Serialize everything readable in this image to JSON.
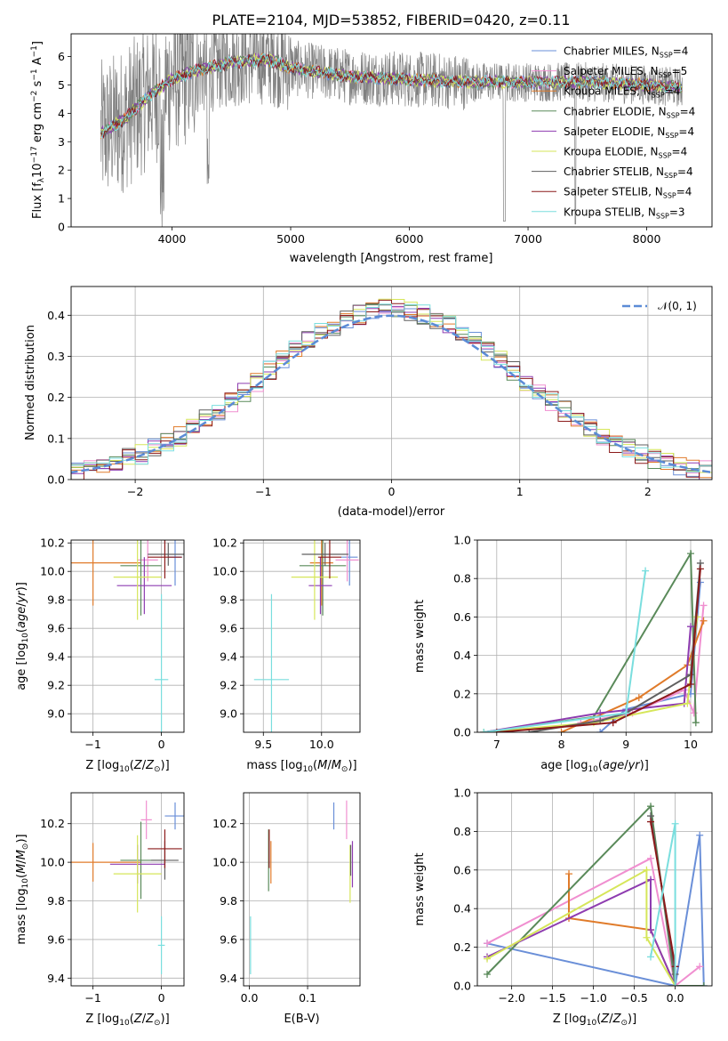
{
  "figure": {
    "title": "PLATE=2104, MJD=53852, FIBERID=0420, z=0.11"
  },
  "colors": {
    "Chabrier MILES": "#6a8fd8",
    "Salpeter MILES": "#f08fd0",
    "Kroupa MILES": "#e07b2a",
    "Chabrier ELODIE": "#5a8a5a",
    "Salpeter ELODIE": "#8e3cb0",
    "Kroupa ELODIE": "#d6e65a",
    "Chabrier STELIB": "#606060",
    "Salpeter STELIB": "#8b1a1a",
    "Kroupa STELIB": "#7adede",
    "normal": "#5b8bd6",
    "grid": "#b0b0b0"
  },
  "chart_data": [
    {
      "type": "line",
      "panel": "spectrum",
      "title": "PLATE=2104, MJD=53852, FIBERID=0420, z=0.11",
      "xlabel": "wavelength [Angstrom, rest frame]",
      "ylabel": "Flux [f_λ 10^-17 erg cm^-2 s^-1 A^-1]",
      "xlim": [
        3150,
        8550
      ],
      "ylim": [
        0,
        6.8
      ],
      "xticks": [
        "4000",
        "5000",
        "6000",
        "7000",
        "8000"
      ],
      "yticks": [
        "0",
        "1",
        "2",
        "3",
        "4",
        "5",
        "6"
      ],
      "grid": false,
      "legend_position": "right",
      "model_range": [
        3400,
        8300
      ],
      "continuum": [
        [
          3400,
          3.3
        ],
        [
          3600,
          3.8
        ],
        [
          3800,
          4.6
        ],
        [
          4000,
          5.2
        ],
        [
          4200,
          5.5
        ],
        [
          4500,
          5.8
        ],
        [
          4800,
          5.9
        ],
        [
          5000,
          5.6
        ],
        [
          5500,
          5.3
        ],
        [
          6000,
          5.2
        ],
        [
          6500,
          5.1
        ],
        [
          7000,
          5.1
        ],
        [
          7500,
          5.1
        ],
        [
          8000,
          5.0
        ],
        [
          8300,
          4.9
        ]
      ],
      "series": [
        {
          "name": "Chabrier MILES, N_SSP=4"
        },
        {
          "name": "Salpeter MILES, N_SSP=5"
        },
        {
          "name": "Kroupa MILES, N_SSP=4"
        },
        {
          "name": "Chabrier ELODIE, N_SSP=4"
        },
        {
          "name": "Salpeter ELODIE, N_SSP=4"
        },
        {
          "name": "Kroupa ELODIE, N_SSP=4"
        },
        {
          "name": "Chabrier STELIB, N_SSP=4"
        },
        {
          "name": "Salpeter STELIB, N_SSP=4"
        },
        {
          "name": "Kroupa STELIB, N_SSP=3"
        }
      ]
    },
    {
      "type": "line",
      "panel": "residuals",
      "xlabel": "(data-model)/error",
      "ylabel": "Normed distribution",
      "xlim": [
        -2.5,
        2.5
      ],
      "ylim": [
        0,
        0.47
      ],
      "xticks": [
        "−2",
        "−1",
        "0",
        "1",
        "2"
      ],
      "yticks": [
        "0.0",
        "0.1",
        "0.2",
        "0.3",
        "0.4"
      ],
      "grid": true,
      "legend": "𝒩(0, 1)",
      "legend_position": "top-right",
      "bin_width": 0.1
    },
    {
      "type": "scatter",
      "panel": "age-vs-Z",
      "xlabel": "Z [log10(Z/Z⊙)]",
      "ylabel": "age [log10(age/yr)]",
      "xlim": [
        -1.32,
        0.33
      ],
      "ylim": [
        8.87,
        10.22
      ],
      "xticks": [
        "−1",
        "0"
      ],
      "yticks": [
        "9.0",
        "9.2",
        "9.4",
        "9.6",
        "9.8",
        "10.0",
        "10.2"
      ],
      "grid": true,
      "points": [
        {
          "s": "Chabrier MILES",
          "x": 0.2,
          "y": 10.1,
          "xe": 0.1,
          "ye": 0.2
        },
        {
          "s": "Salpeter MILES",
          "x": -0.2,
          "y": 10.08,
          "xe": 0.15,
          "ye": 0.15
        },
        {
          "s": "Kroupa MILES",
          "x": -1.0,
          "y": 10.06,
          "xe": 0.7,
          "ye": 0.3
        },
        {
          "s": "Chabrier ELODIE",
          "x": -0.3,
          "y": 10.04,
          "xe": 0.3,
          "ye": 0.35
        },
        {
          "s": "Salpeter ELODIE",
          "x": -0.25,
          "y": 9.9,
          "xe": 0.4,
          "ye": 0.2
        },
        {
          "s": "Kroupa ELODIE",
          "x": -0.35,
          "y": 9.96,
          "xe": 0.35,
          "ye": 0.3
        },
        {
          "s": "Chabrier STELIB",
          "x": 0.1,
          "y": 10.12,
          "xe": 0.3,
          "ye": 0.08
        },
        {
          "s": "Salpeter STELIB",
          "x": 0.05,
          "y": 10.1,
          "xe": 0.25,
          "ye": 0.15
        },
        {
          "s": "Kroupa STELIB",
          "x": 0.0,
          "y": 9.24,
          "xe": 0.1,
          "ye": 0.6
        }
      ]
    },
    {
      "type": "scatter",
      "panel": "age-vs-mass",
      "xlabel": "mass [log10(M/M⊙)]",
      "ylabel": "",
      "xlim": [
        9.33,
        10.33
      ],
      "ylim": [
        8.87,
        10.22
      ],
      "xticks": [
        "9.5",
        "10.0"
      ],
      "yticks": [
        "9.0",
        "9.2",
        "9.4",
        "9.6",
        "9.8",
        "10.0",
        "10.2"
      ],
      "grid": true,
      "points": [
        {
          "s": "Chabrier MILES",
          "x": 10.24,
          "y": 10.1,
          "xe": 0.07,
          "ye": 0.2
        },
        {
          "s": "Salpeter MILES",
          "x": 10.22,
          "y": 10.08,
          "xe": 0.1,
          "ye": 0.15
        },
        {
          "s": "Kroupa MILES",
          "x": 10.0,
          "y": 10.06,
          "xe": 0.1,
          "ye": 0.3
        },
        {
          "s": "Chabrier ELODIE",
          "x": 10.01,
          "y": 10.04,
          "xe": 0.2,
          "ye": 0.35
        },
        {
          "s": "Salpeter ELODIE",
          "x": 9.99,
          "y": 9.9,
          "xe": 0.1,
          "ye": 0.2
        },
        {
          "s": "Kroupa ELODIE",
          "x": 9.94,
          "y": 9.96,
          "xe": 0.2,
          "ye": 0.3
        },
        {
          "s": "Chabrier STELIB",
          "x": 10.03,
          "y": 10.12,
          "xe": 0.2,
          "ye": 0.08
        },
        {
          "s": "Salpeter STELIB",
          "x": 10.07,
          "y": 10.1,
          "xe": 0.1,
          "ye": 0.15
        },
        {
          "s": "Kroupa STELIB",
          "x": 9.57,
          "y": 9.24,
          "xe": 0.15,
          "ye": 0.6
        }
      ]
    },
    {
      "type": "line",
      "panel": "mass-weight-vs-age",
      "xlabel": "age [log10(age/yr)]",
      "ylabel": "mass weight",
      "xlim": [
        6.7,
        10.33
      ],
      "ylim": [
        0,
        1.0
      ],
      "xticks": [
        "7",
        "8",
        "9",
        "10"
      ],
      "yticks": [
        "0.0",
        "0.2",
        "0.4",
        "0.6",
        "0.8",
        "1.0"
      ],
      "grid": true,
      "series": [
        {
          "s": "Chabrier MILES",
          "x": [
            8.6,
            9.0,
            10.0,
            10.15
          ],
          "y": [
            0.0,
            0.12,
            0.2,
            0.78
          ]
        },
        {
          "s": "Salpeter MILES",
          "x": [
            8.3,
            9.1,
            9.9,
            10.05,
            10.2
          ],
          "y": [
            0.05,
            0.1,
            0.22,
            0.1,
            0.66
          ]
        },
        {
          "s": "Kroupa MILES",
          "x": [
            8.0,
            9.2,
            9.95,
            10.2
          ],
          "y": [
            0.0,
            0.18,
            0.35,
            0.58
          ]
        },
        {
          "s": "Chabrier ELODIE",
          "x": [
            6.8,
            8.5,
            10.0,
            10.08
          ],
          "y": [
            0.0,
            0.08,
            0.93,
            0.05
          ]
        },
        {
          "s": "Salpeter ELODIE",
          "x": [
            6.8,
            8.6,
            9.9,
            10.0
          ],
          "y": [
            0.0,
            0.1,
            0.15,
            0.55
          ]
        },
        {
          "s": "Kroupa ELODIE",
          "x": [
            6.8,
            8.5,
            9.95,
            10.1
          ],
          "y": [
            0.0,
            0.05,
            0.15,
            0.6
          ]
        },
        {
          "s": "Chabrier STELIB",
          "x": [
            7.5,
            8.6,
            9.0,
            10.0,
            10.15
          ],
          "y": [
            0.0,
            0.06,
            0.1,
            0.3,
            0.88
          ]
        },
        {
          "s": "Salpeter STELIB",
          "x": [
            7.0,
            8.8,
            10.0,
            10.15
          ],
          "y": [
            0.0,
            0.05,
            0.25,
            0.85
          ]
        },
        {
          "s": "Kroupa STELIB",
          "x": [
            6.8,
            9.0,
            9.3
          ],
          "y": [
            0.0,
            0.1,
            0.84
          ]
        }
      ]
    },
    {
      "type": "scatter",
      "panel": "mass-vs-Z",
      "xlabel": "Z [log10(Z/Z⊙)]",
      "ylabel": "mass [log10(M/M⊙)]",
      "xlim": [
        -1.32,
        0.33
      ],
      "ylim": [
        9.36,
        10.36
      ],
      "xticks": [
        "−1",
        "0"
      ],
      "yticks": [
        "9.4",
        "9.6",
        "9.8",
        "10.0",
        "10.2"
      ],
      "grid": true,
      "points": [
        {
          "s": "Chabrier MILES",
          "x": 0.2,
          "y": 10.24,
          "xe": 0.15,
          "ye": 0.07
        },
        {
          "s": "Salpeter MILES",
          "x": -0.22,
          "y": 10.22,
          "xe": 0.08,
          "ye": 0.1
        },
        {
          "s": "Kroupa MILES",
          "x": -1.0,
          "y": 10.0,
          "xe": 0.7,
          "ye": 0.1
        },
        {
          "s": "Chabrier ELODIE",
          "x": -0.3,
          "y": 10.01,
          "xe": 0.3,
          "ye": 0.2
        },
        {
          "s": "Salpeter ELODIE",
          "x": -0.35,
          "y": 9.99,
          "xe": 0.4,
          "ye": 0.1
        },
        {
          "s": "Kroupa ELODIE",
          "x": -0.35,
          "y": 9.94,
          "xe": 0.35,
          "ye": 0.2
        },
        {
          "s": "Chabrier STELIB",
          "x": 0.05,
          "y": 10.01,
          "xe": 0.2,
          "ye": 0.1
        },
        {
          "s": "Salpeter STELIB",
          "x": 0.05,
          "y": 10.07,
          "xe": 0.25,
          "ye": 0.1
        },
        {
          "s": "Kroupa STELIB",
          "x": 0.0,
          "y": 9.57,
          "xe": 0.05,
          "ye": 0.15
        }
      ]
    },
    {
      "type": "scatter",
      "panel": "mass-vs-EBV",
      "xlabel": "E(B-V)",
      "ylabel": "",
      "xlim": [
        -0.01,
        0.19
      ],
      "ylim": [
        9.36,
        10.36
      ],
      "xticks": [
        "0.0",
        "0.1"
      ],
      "yticks": [
        "9.4",
        "9.6",
        "9.8",
        "10.0",
        "10.2"
      ],
      "grid": true,
      "points": [
        {
          "s": "Chabrier MILES",
          "x": 0.145,
          "y": 10.24,
          "xe": 0.0,
          "ye": 0.07
        },
        {
          "s": "Salpeter MILES",
          "x": 0.167,
          "y": 10.22,
          "xe": 0.0,
          "ye": 0.1
        },
        {
          "s": "Kroupa MILES",
          "x": 0.037,
          "y": 10.0,
          "xe": 0.0,
          "ye": 0.11
        },
        {
          "s": "Chabrier ELODIE",
          "x": 0.033,
          "y": 10.01,
          "xe": 0.0,
          "ye": 0.16
        },
        {
          "s": "Salpeter ELODIE",
          "x": 0.177,
          "y": 9.99,
          "xe": 0.0,
          "ye": 0.12
        },
        {
          "s": "Kroupa ELODIE",
          "x": 0.173,
          "y": 9.94,
          "xe": 0.0,
          "ye": 0.15
        },
        {
          "s": "Chabrier STELIB",
          "x": 0.174,
          "y": 10.01,
          "xe": 0.0,
          "ye": 0.08
        },
        {
          "s": "Salpeter STELIB",
          "x": 0.034,
          "y": 10.07,
          "xe": 0.0,
          "ye": 0.1
        },
        {
          "s": "Kroupa STELIB",
          "x": 0.002,
          "y": 9.57,
          "xe": 0.0,
          "ye": 0.15
        }
      ]
    },
    {
      "type": "line",
      "panel": "mass-weight-vs-Z",
      "xlabel": "Z [log10(Z/Z⊙)]",
      "ylabel": "mass weight",
      "xlim": [
        -2.42,
        0.45
      ],
      "ylim": [
        0,
        1.0
      ],
      "xticks": [
        "−2.0",
        "−1.5",
        "−1.0",
        "−0.5",
        "0.0"
      ],
      "yticks": [
        "0.0",
        "0.2",
        "0.4",
        "0.6",
        "0.8",
        "1.0"
      ],
      "grid": true,
      "series": [
        {
          "s": "Chabrier MILES",
          "x": [
            -2.3,
            0.0,
            0.3,
            0.35
          ],
          "y": [
            0.22,
            0.0,
            0.78,
            0.0
          ]
        },
        {
          "s": "Salpeter MILES",
          "x": [
            -2.3,
            -0.3,
            0.0,
            0.3
          ],
          "y": [
            0.22,
            0.66,
            0.0,
            0.1
          ]
        },
        {
          "s": "Kroupa MILES",
          "x": [
            -1.3,
            -1.3,
            -0.3,
            0.0
          ],
          "y": [
            0.58,
            0.35,
            0.29,
            0.0
          ]
        },
        {
          "s": "Chabrier ELODIE",
          "x": [
            -2.3,
            -0.3,
            0.0,
            0.35
          ],
          "y": [
            0.06,
            0.93,
            0.0,
            0.0
          ]
        },
        {
          "s": "Salpeter ELODIE",
          "x": [
            -2.3,
            -0.3,
            -0.3,
            0.0
          ],
          "y": [
            0.15,
            0.55,
            0.29,
            0.0
          ]
        },
        {
          "s": "Kroupa ELODIE",
          "x": [
            -2.3,
            -0.35,
            -0.35,
            0.0
          ],
          "y": [
            0.14,
            0.6,
            0.25,
            0.0
          ]
        },
        {
          "s": "Chabrier STELIB",
          "x": [
            -0.3,
            0.0,
            0.0
          ],
          "y": [
            0.88,
            0.06,
            0.0
          ]
        },
        {
          "s": "Salpeter STELIB",
          "x": [
            -0.3,
            0.0,
            0.0
          ],
          "y": [
            0.85,
            0.1,
            0.0
          ]
        },
        {
          "s": "Kroupa STELIB",
          "x": [
            -0.3,
            0.0,
            0.0
          ],
          "y": [
            0.15,
            0.84,
            0.0
          ]
        }
      ]
    }
  ]
}
